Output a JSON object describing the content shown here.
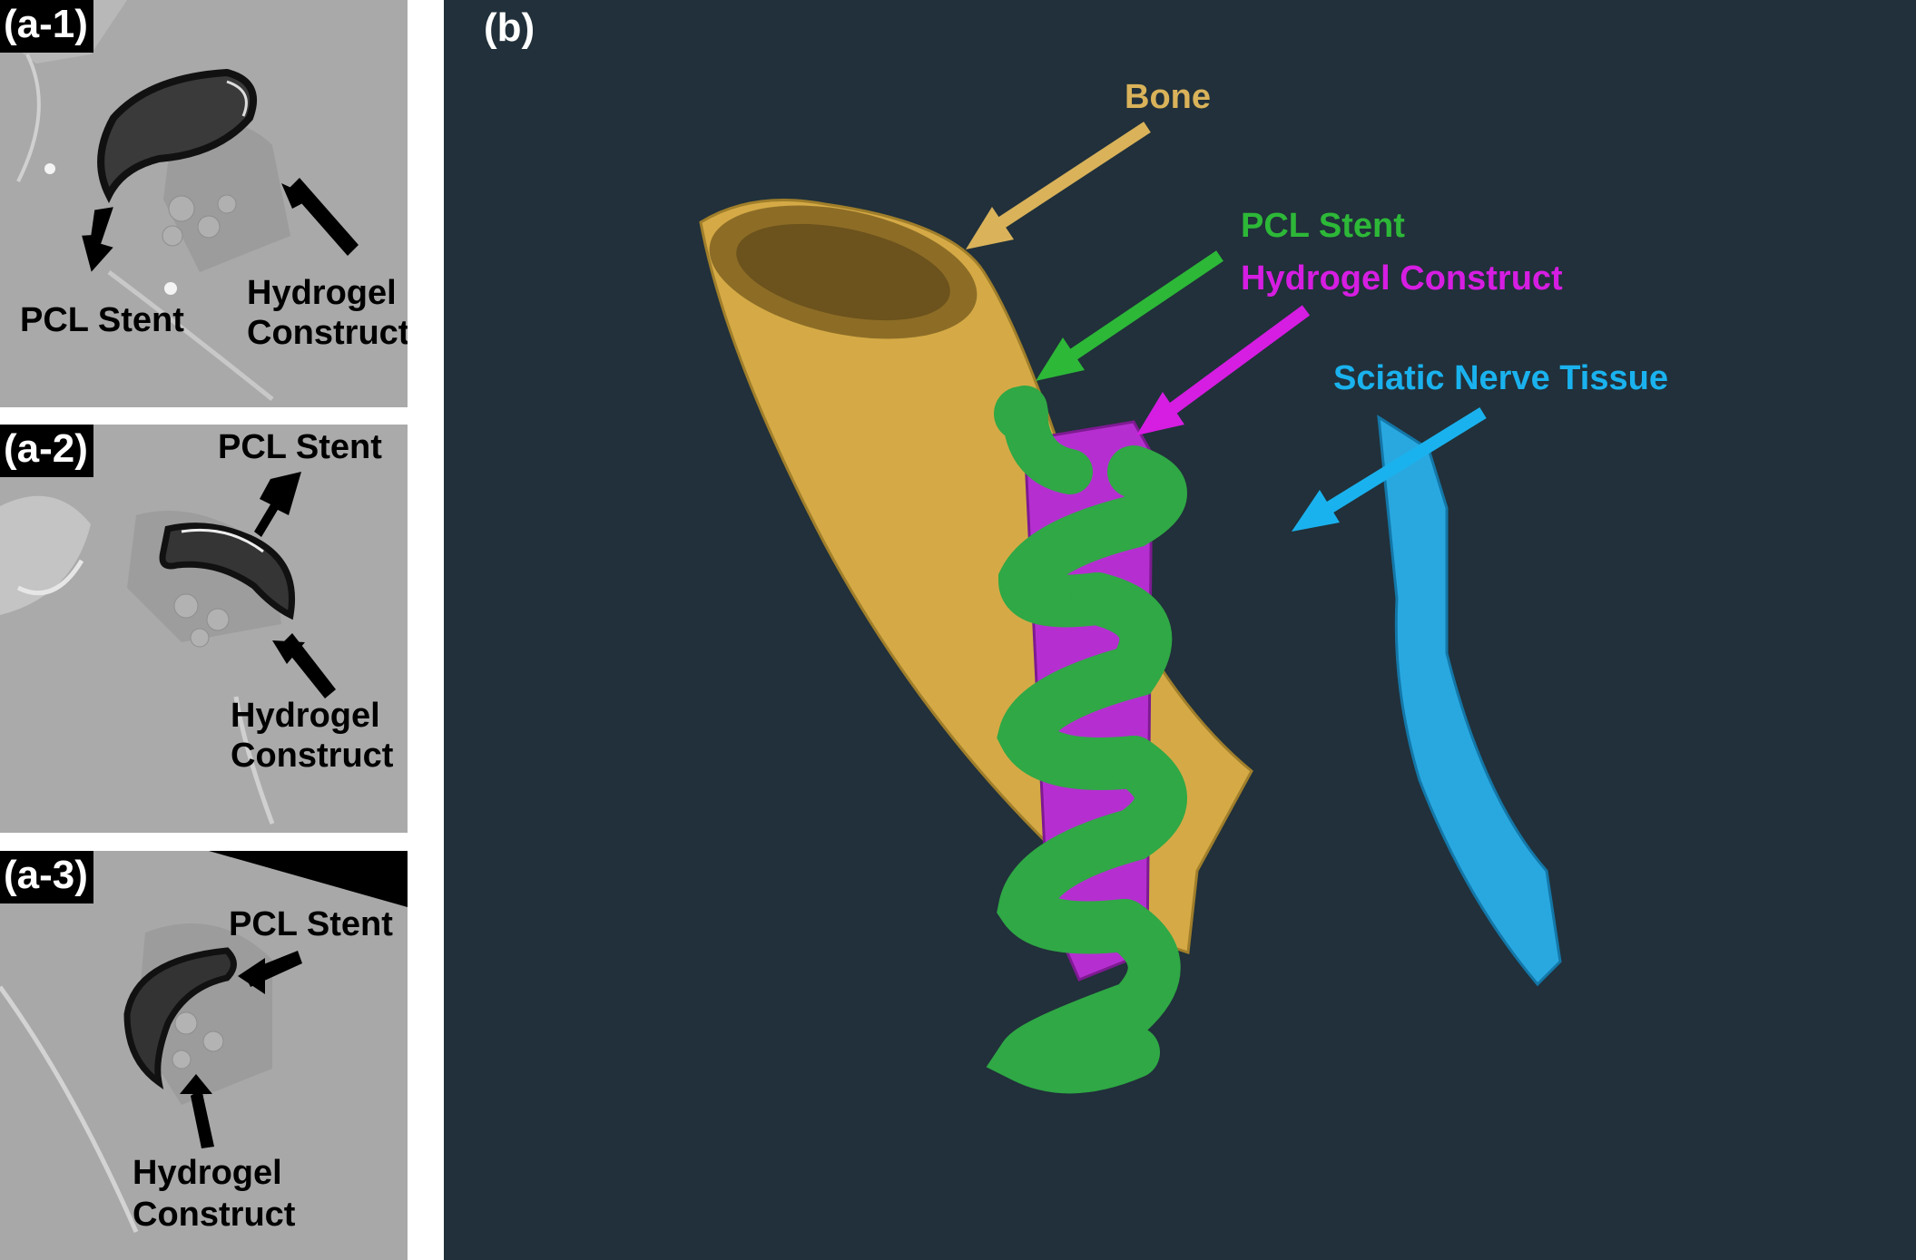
{
  "panels": [
    {
      "tag": "(a-1)",
      "labels": {
        "stent": "PCL Stent",
        "hydrogel_1": "Hydrogel",
        "hydrogel_2": "Construct"
      }
    },
    {
      "tag": "(a-2)",
      "labels": {
        "stent": "PCL Stent",
        "hydrogel_1": "Hydrogel",
        "hydrogel_2": "Construct"
      }
    },
    {
      "tag": "(a-3)",
      "labels": {
        "stent": "PCL Stent",
        "hydrogel_1": "Hydrogel",
        "hydrogel_2": "Construct"
      }
    }
  ],
  "render3d": {
    "tag": "(b)",
    "labels": {
      "bone": "Bone",
      "stent": "PCL Stent",
      "hydrogel": "Hydrogel Construct",
      "nerve": "Sciatic Nerve Tissue"
    }
  },
  "colors": {
    "bone": "#d5aa46",
    "stent": "#2fa845",
    "hydrogel": "#b52fd0",
    "nerve": "#29a8e0",
    "bone_label": "#d9b25a",
    "stent_label": "#2db838",
    "hydrogel_label": "#d61de2",
    "nerve_label": "#1ab2ee",
    "background": "#21303a"
  }
}
